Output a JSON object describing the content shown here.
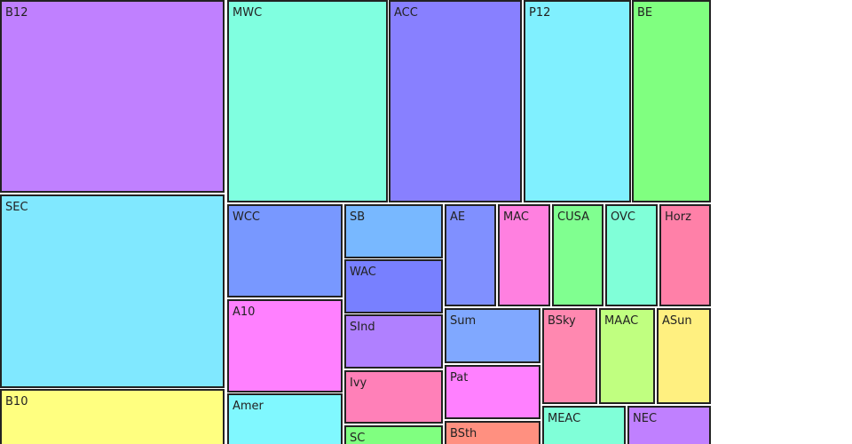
{
  "cells": [
    {
      "label": "B12",
      "color": "#c080ff"
    },
    {
      "label": "SEC",
      "color": "#80e8ff"
    },
    {
      "label": "B10",
      "color": "#ffff80"
    },
    {
      "label": "MWC",
      "color": "#80ffe0"
    },
    {
      "label": "ACC",
      "color": "#8880ff"
    },
    {
      "label": "P12",
      "color": "#80f0ff"
    },
    {
      "label": "BE",
      "color": "#80ff80"
    },
    {
      "label": "WCC",
      "color": "#7898ff"
    },
    {
      "label": "A10",
      "color": "#ff80ff"
    },
    {
      "label": "Amer",
      "color": "#80f8ff"
    },
    {
      "label": "SB",
      "color": "#78b8ff"
    },
    {
      "label": "WAC",
      "color": "#7880ff"
    },
    {
      "label": "SInd",
      "color": "#b080ff"
    },
    {
      "label": "Ivy",
      "color": "#ff80b8"
    },
    {
      "label": "SC",
      "color": "#80ff80"
    },
    {
      "label": "AE",
      "color": "#8090ff"
    },
    {
      "label": "MAC",
      "color": "#ff80e0"
    },
    {
      "label": "CUSA",
      "color": "#80ff90"
    },
    {
      "label": "OVC",
      "color": "#80ffd8"
    },
    {
      "label": "Horz",
      "color": "#ff80a8"
    },
    {
      "label": "Sum",
      "color": "#80a8ff"
    },
    {
      "label": "Pat",
      "color": "#ff80ff"
    },
    {
      "label": "BSth",
      "color": "#ff9080"
    },
    {
      "label": "BSky",
      "color": "#ff88b0"
    },
    {
      "label": "MAAC",
      "color": "#c0ff80"
    },
    {
      "label": "ASun",
      "color": "#fff080"
    },
    {
      "label": "MEAC",
      "color": "#80ffd8"
    },
    {
      "label": "NEC",
      "color": "#c080ff"
    }
  ]
}
